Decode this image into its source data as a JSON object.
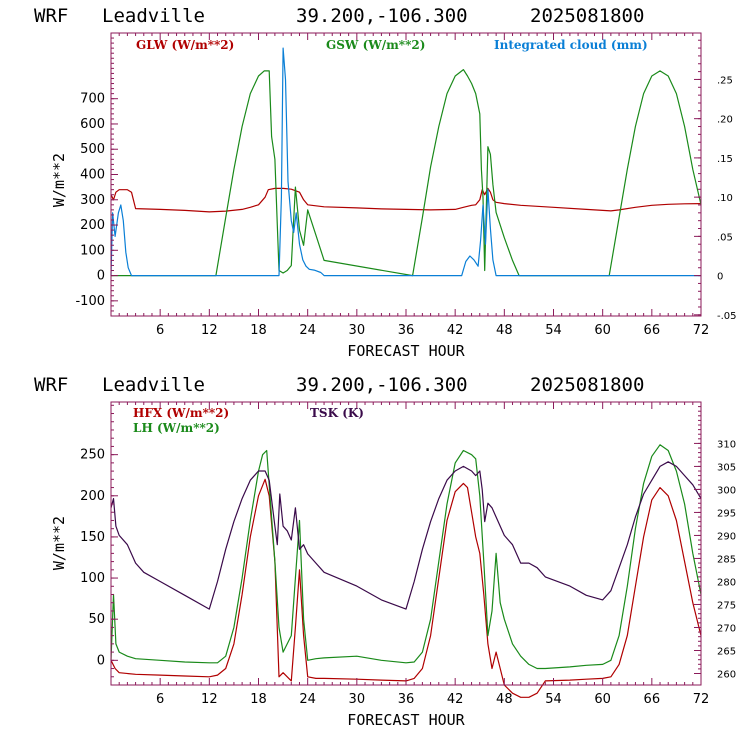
{
  "colors": {
    "red": "#b00000",
    "green": "#1a8a1a",
    "blue": "#0a7fd6",
    "purple": "#3a0a4a",
    "frame": "#8b1a5a"
  },
  "xlabel": "FORECAST HOUR",
  "xticks": [
    6,
    12,
    18,
    24,
    30,
    36,
    42,
    48,
    54,
    60,
    66,
    72
  ],
  "chart_data": [
    {
      "type": "line",
      "header": {
        "model": "WRF",
        "location": "Leadville",
        "coords": "39.200,-106.300",
        "run": "2025081800"
      },
      "ylabel": "W/m**2",
      "xlim": [
        0,
        72
      ],
      "ylim": [
        -160,
        960
      ],
      "yticks": [
        -100,
        0,
        100,
        200,
        300,
        400,
        500,
        600,
        700
      ],
      "right_axis": {
        "ylim": [
          -0.0515,
          0.3092
        ],
        "ticks": [
          -0.05,
          0,
          0.05,
          0.1,
          0.15,
          0.2,
          0.25
        ],
        "tick_labels": [
          "-.05",
          "0",
          ".05",
          ".10",
          ".15",
          ".20",
          ".25"
        ]
      },
      "legend": [
        {
          "label": "GLW (W/m**2)",
          "color": "#b00000"
        },
        {
          "label": "GSW (W/m**2)",
          "color": "#1a8a1a"
        },
        {
          "label": "Integrated cloud (mm)",
          "color": "#0a7fd6"
        }
      ],
      "series": [
        {
          "name": "GLW (W/m**2)",
          "color": "#b00000",
          "axis": "left",
          "x": [
            0,
            0.3,
            0.6,
            1,
            2,
            2.5,
            3,
            6,
            9,
            12,
            14,
            16,
            17,
            18,
            18.8,
            19.2,
            20,
            21,
            22,
            23,
            23.5,
            24,
            26,
            30,
            33,
            36,
            39,
            42,
            43,
            44,
            44.5,
            45,
            45.3,
            45.6,
            46,
            46.3,
            46.6,
            47,
            48,
            50,
            54,
            58,
            60,
            61,
            62,
            64,
            66,
            68,
            70,
            72
          ],
          "y": [
            320,
            300,
            330,
            340,
            340,
            330,
            265,
            262,
            258,
            252,
            255,
            262,
            270,
            280,
            310,
            340,
            345,
            345,
            342,
            330,
            300,
            280,
            272,
            268,
            264,
            262,
            260,
            262,
            270,
            278,
            280,
            300,
            340,
            320,
            345,
            330,
            300,
            290,
            285,
            278,
            270,
            262,
            258,
            256,
            260,
            270,
            278,
            282,
            284,
            285
          ]
        },
        {
          "name": "GSW (W/m**2)",
          "color": "#1a8a1a",
          "axis": "left",
          "x": [
            0,
            12.8,
            14,
            15,
            16,
            17,
            18,
            18.7,
            19.3,
            19.6,
            20,
            20.3,
            20.5,
            21,
            21.5,
            22,
            22.5,
            23,
            23.5,
            24,
            25,
            26,
            36.8,
            38,
            39,
            40,
            41,
            42,
            43,
            43.5,
            44,
            44.5,
            45,
            45.2,
            45.4,
            45.6,
            46,
            46.3,
            46.6,
            47,
            48,
            49,
            49.8,
            60.8,
            62,
            63,
            64,
            65,
            66,
            67,
            68,
            69,
            70,
            71,
            72
          ],
          "y": [
            0,
            0,
            230,
            420,
            590,
            720,
            790,
            810,
            810,
            550,
            460,
            200,
            20,
            10,
            20,
            40,
            350,
            180,
            120,
            260,
            160,
            60,
            0,
            230,
            430,
            590,
            720,
            790,
            815,
            790,
            760,
            720,
            640,
            420,
            310,
            20,
            510,
            480,
            360,
            250,
            150,
            60,
            0,
            0,
            230,
            420,
            590,
            720,
            790,
            810,
            790,
            720,
            590,
            420,
            280
          ]
        },
        {
          "name": "Integrated cloud (mm)",
          "color": "#0a7fd6",
          "axis": "right",
          "x": [
            0,
            0.2,
            0.5,
            0.9,
            1.2,
            1.5,
            1.8,
            2.1,
            2.5,
            20.5,
            20.8,
            21,
            21.3,
            21.6,
            22,
            22.3,
            22.6,
            23,
            23.4,
            23.8,
            24.2,
            24.8,
            25.6,
            26,
            42.8,
            43.3,
            43.8,
            44.3,
            44.8,
            45.1,
            45.4,
            45.7,
            46,
            46.3,
            46.6,
            47,
            72
          ],
          "y": [
            0,
            0.08,
            0.05,
            0.08,
            0.09,
            0.07,
            0.03,
            0.01,
            0,
            0,
            0.1,
            0.29,
            0.25,
            0.12,
            0.07,
            0.055,
            0.08,
            0.04,
            0.02,
            0.012,
            0.008,
            0.007,
            0.004,
            0,
            0,
            0.018,
            0.025,
            0.02,
            0.012,
            0.045,
            0.09,
            0.04,
            0.11,
            0.06,
            0.02,
            0,
            0
          ]
        }
      ]
    },
    {
      "type": "line",
      "header": {
        "model": "WRF",
        "location": "Leadville",
        "coords": "39.200,-106.300",
        "run": "2025081800"
      },
      "ylabel": "W/m**2",
      "xlim": [
        0,
        72
      ],
      "ylim": [
        -30,
        314
      ],
      "yticks": [
        0,
        50,
        100,
        150,
        200,
        250
      ],
      "right_axis": {
        "ylim": [
          257.5,
          319.0
        ],
        "ticks": [
          260,
          265,
          270,
          275,
          280,
          285,
          290,
          295,
          300,
          305,
          310
        ],
        "tick_labels": [
          "260",
          "265",
          "270",
          "275",
          "280",
          "285",
          "290",
          "295",
          "300",
          "305",
          "310"
        ]
      },
      "legend": [
        {
          "label": "HFX (W/m**2)",
          "color": "#b00000"
        },
        {
          "label": "LH  (W/m**2)",
          "color": "#1a8a1a"
        },
        {
          "label": "TSK (K)",
          "color": "#3a0a4a"
        }
      ],
      "series": [
        {
          "name": "HFX (W/m**2)",
          "color": "#b00000",
          "axis": "left",
          "x": [
            0,
            0.5,
            1,
            3,
            6,
            9,
            12,
            13,
            14,
            15,
            16,
            17,
            18,
            18.8,
            19.3,
            20,
            20.5,
            21,
            22,
            22.5,
            23,
            23.5,
            24,
            25,
            26,
            30,
            33,
            36,
            37,
            38,
            39,
            40,
            41,
            42,
            43,
            43.5,
            44,
            44.5,
            45,
            45.5,
            46,
            46.5,
            47,
            47.5,
            48,
            49,
            50,
            51,
            52,
            53,
            56,
            58,
            60,
            61,
            62,
            63,
            64,
            65,
            66,
            67,
            68,
            69,
            70,
            71,
            72
          ],
          "y": [
            0,
            -10,
            -15,
            -17,
            -18,
            -19,
            -20,
            -18,
            -10,
            20,
            80,
            150,
            200,
            220,
            200,
            120,
            -20,
            -15,
            -25,
            40,
            110,
            30,
            -20,
            -22,
            -22,
            -23,
            -24,
            -25,
            -22,
            -10,
            30,
            100,
            170,
            205,
            215,
            210,
            180,
            150,
            130,
            80,
            20,
            -10,
            10,
            -10,
            -30,
            -40,
            -45,
            -45,
            -40,
            -25,
            -24,
            -23,
            -22,
            -20,
            -5,
            30,
            90,
            150,
            195,
            210,
            200,
            170,
            120,
            70,
            30
          ]
        },
        {
          "name": "LH  (W/m**2)",
          "color": "#1a8a1a",
          "axis": "left",
          "x": [
            0,
            0.3,
            0.6,
            1,
            2,
            3,
            6,
            9,
            12,
            13,
            14,
            15,
            16,
            17,
            18,
            18.5,
            19,
            19.4,
            20,
            20.5,
            21,
            22,
            22.5,
            23,
            23.5,
            24,
            25,
            26,
            30,
            33,
            36,
            37,
            38,
            39,
            40,
            41,
            42,
            43,
            44,
            44.5,
            45,
            45.5,
            46,
            46.5,
            47,
            47.5,
            48,
            49,
            50,
            51,
            52,
            53,
            56,
            58,
            60,
            61,
            62,
            63,
            64,
            65,
            66,
            67,
            68,
            69,
            70,
            71,
            72
          ],
          "y": [
            0,
            80,
            20,
            10,
            5,
            2,
            0,
            -2,
            -3,
            -3,
            5,
            40,
            100,
            170,
            230,
            250,
            255,
            200,
            120,
            40,
            10,
            30,
            100,
            170,
            50,
            0,
            2,
            3,
            5,
            0,
            -3,
            -2,
            10,
            50,
            120,
            190,
            240,
            255,
            250,
            245,
            200,
            120,
            30,
            60,
            130,
            70,
            50,
            20,
            5,
            -5,
            -10,
            -10,
            -8,
            -6,
            -5,
            0,
            30,
            90,
            160,
            215,
            248,
            262,
            255,
            230,
            190,
            130,
            80
          ]
        },
        {
          "name": "TSK (K)",
          "color": "#3a0a4a",
          "axis": "right",
          "x": [
            0,
            0.3,
            0.6,
            1,
            2,
            3,
            4,
            6,
            9,
            12,
            13,
            14,
            15,
            16,
            17,
            18,
            18.8,
            19.3,
            20,
            20.3,
            20.6,
            21,
            21.5,
            22,
            22.5,
            23,
            23.5,
            24,
            25,
            26,
            30,
            33,
            36,
            37,
            38,
            39,
            40,
            41,
            42,
            43,
            44,
            44.5,
            45,
            45.3,
            45.6,
            46,
            46.5,
            47,
            48,
            49,
            50,
            51,
            52,
            53,
            56,
            58,
            60,
            61,
            62,
            63,
            64,
            65,
            66,
            67,
            68,
            69,
            70,
            71,
            72
          ],
          "y": [
            296,
            298,
            292,
            290,
            288,
            284,
            282,
            280,
            277,
            274,
            280,
            287,
            293,
            298,
            302,
            304,
            304,
            302,
            292,
            288,
            299,
            292,
            291,
            289,
            296,
            287,
            288,
            286,
            284,
            282,
            279,
            276,
            274,
            280,
            287,
            293,
            298,
            302,
            304,
            305,
            304,
            303,
            304,
            300,
            293,
            297,
            296,
            294,
            290,
            288,
            284,
            284,
            283,
            281,
            279,
            277,
            276,
            278,
            283,
            288,
            294,
            299,
            302,
            305,
            306,
            305,
            303,
            301,
            298
          ]
        }
      ]
    }
  ]
}
